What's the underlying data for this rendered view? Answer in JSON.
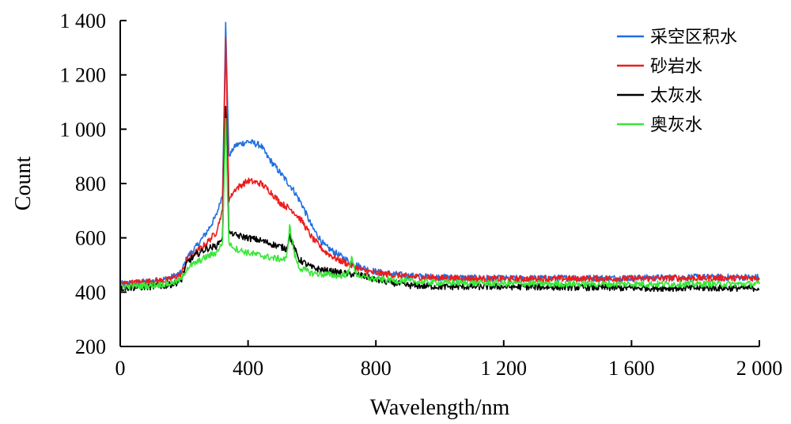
{
  "chart_data": {
    "type": "line",
    "title": "",
    "xlabel": "Wavelength/nm",
    "ylabel": "Count",
    "xlim": [
      0,
      2000
    ],
    "ylim": [
      200,
      1400
    ],
    "xticks": [
      0,
      400,
      800,
      1200,
      1600,
      2000
    ],
    "xtick_labels": [
      "0",
      "400",
      "800",
      "1 200",
      "1 600",
      "2 000"
    ],
    "yticks": [
      200,
      400,
      600,
      800,
      1000,
      1200,
      1400
    ],
    "ytick_labels": [
      "200",
      "400",
      "600",
      "800",
      "1 000",
      "1 200",
      "1 400"
    ],
    "grid": false,
    "legend_position": "top-right",
    "series": [
      {
        "name": "采空区积水",
        "color": "#1f6fe0",
        "points": [
          [
            0,
            430
          ],
          [
            100,
            440
          ],
          [
            150,
            450
          ],
          [
            190,
            470
          ],
          [
            210,
            530
          ],
          [
            240,
            570
          ],
          [
            270,
            620
          ],
          [
            300,
            680
          ],
          [
            320,
            760
          ],
          [
            330,
            1390
          ],
          [
            340,
            900
          ],
          [
            360,
            940
          ],
          [
            400,
            955
          ],
          [
            440,
            940
          ],
          [
            460,
            900
          ],
          [
            500,
            840
          ],
          [
            540,
            780
          ],
          [
            570,
            720
          ],
          [
            600,
            640
          ],
          [
            640,
            570
          ],
          [
            680,
            540
          ],
          [
            720,
            510
          ],
          [
            760,
            490
          ],
          [
            800,
            475
          ],
          [
            900,
            460
          ],
          [
            1000,
            455
          ],
          [
            1200,
            450
          ],
          [
            1400,
            452
          ],
          [
            1600,
            452
          ],
          [
            1800,
            455
          ],
          [
            2000,
            455
          ]
        ]
      },
      {
        "name": "砂岩水",
        "color": "#ee1c1c",
        "points": [
          [
            0,
            430
          ],
          [
            100,
            440
          ],
          [
            150,
            445
          ],
          [
            190,
            465
          ],
          [
            210,
            520
          ],
          [
            240,
            550
          ],
          [
            270,
            580
          ],
          [
            300,
            620
          ],
          [
            320,
            700
          ],
          [
            330,
            1330
          ],
          [
            340,
            740
          ],
          [
            360,
            780
          ],
          [
            400,
            810
          ],
          [
            440,
            800
          ],
          [
            470,
            770
          ],
          [
            500,
            730
          ],
          [
            540,
            700
          ],
          [
            570,
            660
          ],
          [
            600,
            600
          ],
          [
            640,
            550
          ],
          [
            680,
            520
          ],
          [
            720,
            500
          ],
          [
            760,
            480
          ],
          [
            800,
            470
          ],
          [
            900,
            458
          ],
          [
            1000,
            452
          ],
          [
            1200,
            448
          ],
          [
            1400,
            450
          ],
          [
            1600,
            450
          ],
          [
            1800,
            452
          ],
          [
            2000,
            452
          ]
        ]
      },
      {
        "name": "太灰水",
        "color": "#000000",
        "points": [
          [
            0,
            415
          ],
          [
            100,
            420
          ],
          [
            150,
            425
          ],
          [
            190,
            440
          ],
          [
            210,
            510
          ],
          [
            240,
            540
          ],
          [
            270,
            560
          ],
          [
            300,
            570
          ],
          [
            320,
            600
          ],
          [
            330,
            1090
          ],
          [
            340,
            620
          ],
          [
            360,
            610
          ],
          [
            400,
            600
          ],
          [
            440,
            590
          ],
          [
            480,
            575
          ],
          [
            520,
            560
          ],
          [
            530,
            610
          ],
          [
            545,
            560
          ],
          [
            560,
            520
          ],
          [
            600,
            490
          ],
          [
            640,
            480
          ],
          [
            700,
            470
          ],
          [
            760,
            460
          ],
          [
            800,
            445
          ],
          [
            900,
            425
          ],
          [
            1000,
            420
          ],
          [
            1200,
            420
          ],
          [
            1400,
            418
          ],
          [
            1600,
            415
          ],
          [
            1800,
            415
          ],
          [
            2000,
            415
          ]
        ]
      },
      {
        "name": "奥灰水",
        "color": "#39e639",
        "points": [
          [
            0,
            420
          ],
          [
            100,
            425
          ],
          [
            150,
            430
          ],
          [
            190,
            445
          ],
          [
            210,
            490
          ],
          [
            240,
            510
          ],
          [
            270,
            530
          ],
          [
            300,
            545
          ],
          [
            320,
            580
          ],
          [
            330,
            1040
          ],
          [
            340,
            580
          ],
          [
            360,
            560
          ],
          [
            400,
            545
          ],
          [
            440,
            535
          ],
          [
            480,
            525
          ],
          [
            520,
            520
          ],
          [
            530,
            645
          ],
          [
            545,
            540
          ],
          [
            560,
            490
          ],
          [
            600,
            470
          ],
          [
            640,
            465
          ],
          [
            690,
            460
          ],
          [
            715,
            470
          ],
          [
            725,
            540
          ],
          [
            735,
            470
          ],
          [
            760,
            455
          ],
          [
            800,
            448
          ],
          [
            900,
            440
          ],
          [
            1000,
            435
          ],
          [
            1200,
            432
          ],
          [
            1400,
            430
          ],
          [
            1600,
            430
          ],
          [
            1800,
            430
          ],
          [
            2000,
            430
          ]
        ]
      }
    ]
  }
}
